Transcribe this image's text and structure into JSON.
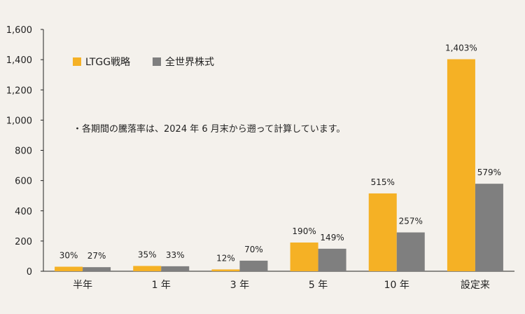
{
  "chart_data": {
    "type": "bar",
    "categories": [
      "半年",
      "1 年",
      "3 年",
      "5 年",
      "10 年",
      "設定来"
    ],
    "series": [
      {
        "name": "LTGG戦略",
        "values": [
          30,
          35,
          12,
          190,
          515,
          1403
        ],
        "labels": [
          "30%",
          "35%",
          "12%",
          "190%",
          "515%",
          "1,403%"
        ],
        "color": "#f5b125"
      },
      {
        "name": "全世界株式",
        "values": [
          27,
          33,
          70,
          149,
          257,
          579
        ],
        "labels": [
          "27%",
          "33%",
          "70%",
          "149%",
          "257%",
          "579%"
        ],
        "color": "#7f7f7f"
      }
    ],
    "ylim": [
      0,
      1600
    ],
    "yticks": [
      0,
      200,
      400,
      600,
      800,
      1000,
      1200,
      1400,
      1600
    ],
    "ytick_labels": [
      "0",
      "200",
      "400",
      "600",
      "800",
      "1,000",
      "1,200",
      "1,400",
      "1,600"
    ],
    "legend_position": "top-left",
    "grid": false
  },
  "note": "・各期間の騰落率は、2024 年 6 月末から遡って計算しています。"
}
